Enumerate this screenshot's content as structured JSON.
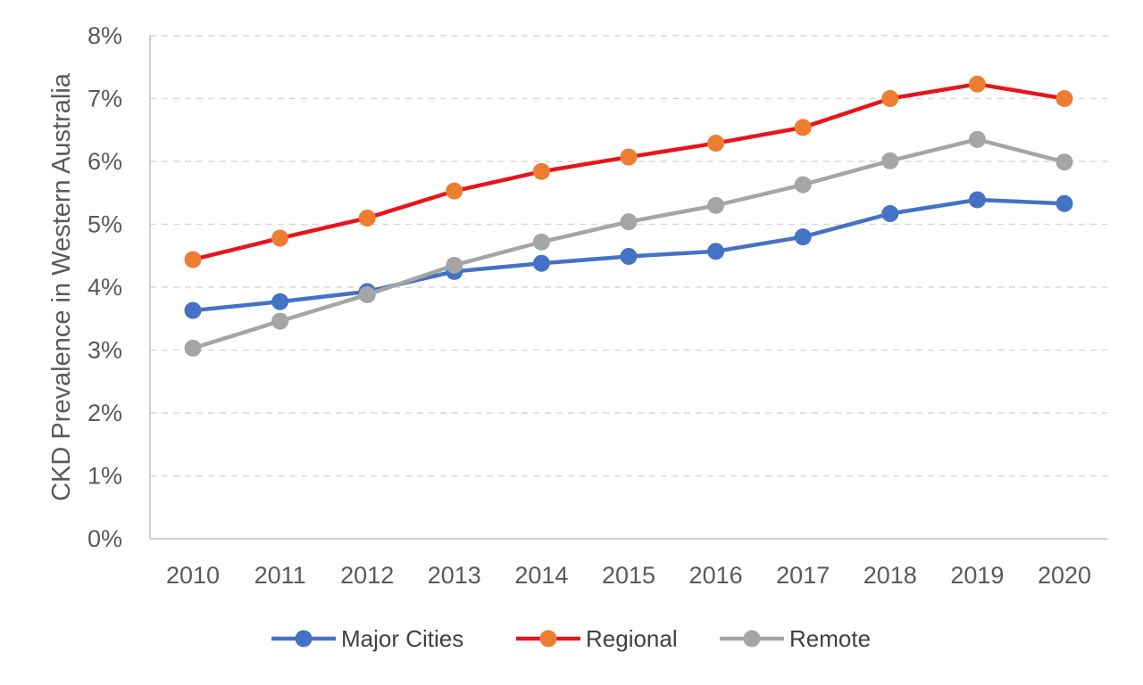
{
  "chart_data": {
    "type": "line",
    "title": "",
    "xlabel": "",
    "ylabel": "CKD Prevalence in Western Australia",
    "x": [
      "2010",
      "2011",
      "2012",
      "2013",
      "2014",
      "2015",
      "2016",
      "2017",
      "2018",
      "2019",
      "2020"
    ],
    "ylim": [
      0,
      8
    ],
    "yticks": [
      "0%",
      "1%",
      "2%",
      "3%",
      "4%",
      "5%",
      "6%",
      "7%",
      "8%"
    ],
    "y_unit": "%",
    "grid": true,
    "legend_position": "bottom",
    "series": [
      {
        "name": "Major Cities",
        "color": "#4472c4",
        "marker": "circle",
        "values": [
          3.63,
          3.77,
          3.93,
          4.25,
          4.38,
          4.49,
          4.57,
          4.8,
          5.17,
          5.39,
          5.33
        ]
      },
      {
        "name": "Regional",
        "line_color": "#e8141b",
        "marker_color": "#ed7d31",
        "marker": "circle",
        "values": [
          4.44,
          4.78,
          5.1,
          5.53,
          5.84,
          6.07,
          6.29,
          6.54,
          7.0,
          7.23,
          7.0
        ]
      },
      {
        "name": "Remote",
        "color": "#a5a5a5",
        "marker": "circle",
        "values": [
          3.03,
          3.46,
          3.88,
          4.35,
          4.72,
          5.04,
          5.3,
          5.63,
          6.01,
          6.35,
          5.99
        ]
      }
    ]
  }
}
